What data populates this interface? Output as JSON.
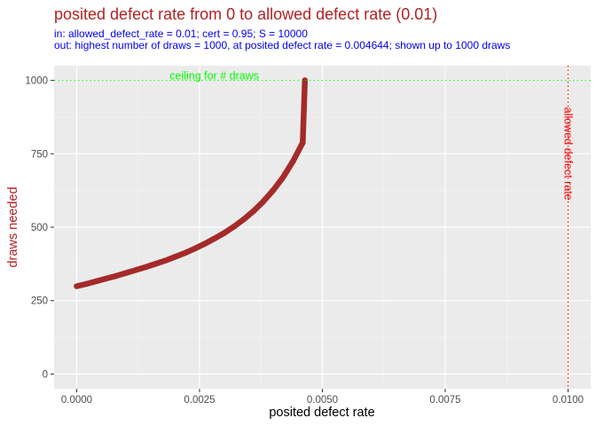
{
  "chart_data": {
    "type": "scatter",
    "title": "posited defect rate from 0 to allowed defect rate (0.01)",
    "subtitle_in": "in:   allowed_defect_rate = 0.01; cert = 0.95; S = 10000",
    "subtitle_out": "out: highest number of draws = 1000, at posited defect rate = 0.004644; shown up to 1000 draws",
    "xlabel": "posited defect rate",
    "ylabel": "draws needed",
    "xlim": [
      -0.00046,
      0.01046
    ],
    "ylim": [
      -50,
      1050
    ],
    "x_ticks": [
      0.0,
      0.0025,
      0.005,
      0.0075,
      0.01
    ],
    "x_tick_labels": [
      "0.0000",
      "0.0025",
      "0.0050",
      "0.0075",
      "0.0100"
    ],
    "y_ticks": [
      0,
      250,
      500,
      750,
      1000
    ],
    "y_tick_labels": [
      "0",
      "250",
      "500",
      "750",
      "1000"
    ],
    "grid": true,
    "background": "#ebebeb",
    "series_color": "#a52a2a",
    "points": [
      [
        0.0,
        299
      ],
      [
        0.0002,
        307
      ],
      [
        0.0004,
        316
      ],
      [
        0.0006,
        325
      ],
      [
        0.0008,
        334
      ],
      [
        0.001,
        344
      ],
      [
        0.0012,
        354
      ],
      [
        0.0014,
        364
      ],
      [
        0.0016,
        375
      ],
      [
        0.0018,
        386
      ],
      [
        0.002,
        399
      ],
      [
        0.0022,
        412
      ],
      [
        0.0024,
        427
      ],
      [
        0.0026,
        443
      ],
      [
        0.0028,
        461
      ],
      [
        0.003,
        480
      ],
      [
        0.0032,
        502
      ],
      [
        0.0034,
        527
      ],
      [
        0.0036,
        555
      ],
      [
        0.0038,
        588
      ],
      [
        0.004,
        626
      ],
      [
        0.0042,
        670
      ],
      [
        0.0044,
        724
      ],
      [
        0.0046,
        788
      ],
      [
        0.004644,
        1000
      ]
    ],
    "hline": {
      "y": 1000,
      "color": "#00ff00",
      "label": "ceiling for # draws"
    },
    "vline": {
      "x": 0.01,
      "color": "#ff0000",
      "label": "allowed defect rate"
    }
  }
}
